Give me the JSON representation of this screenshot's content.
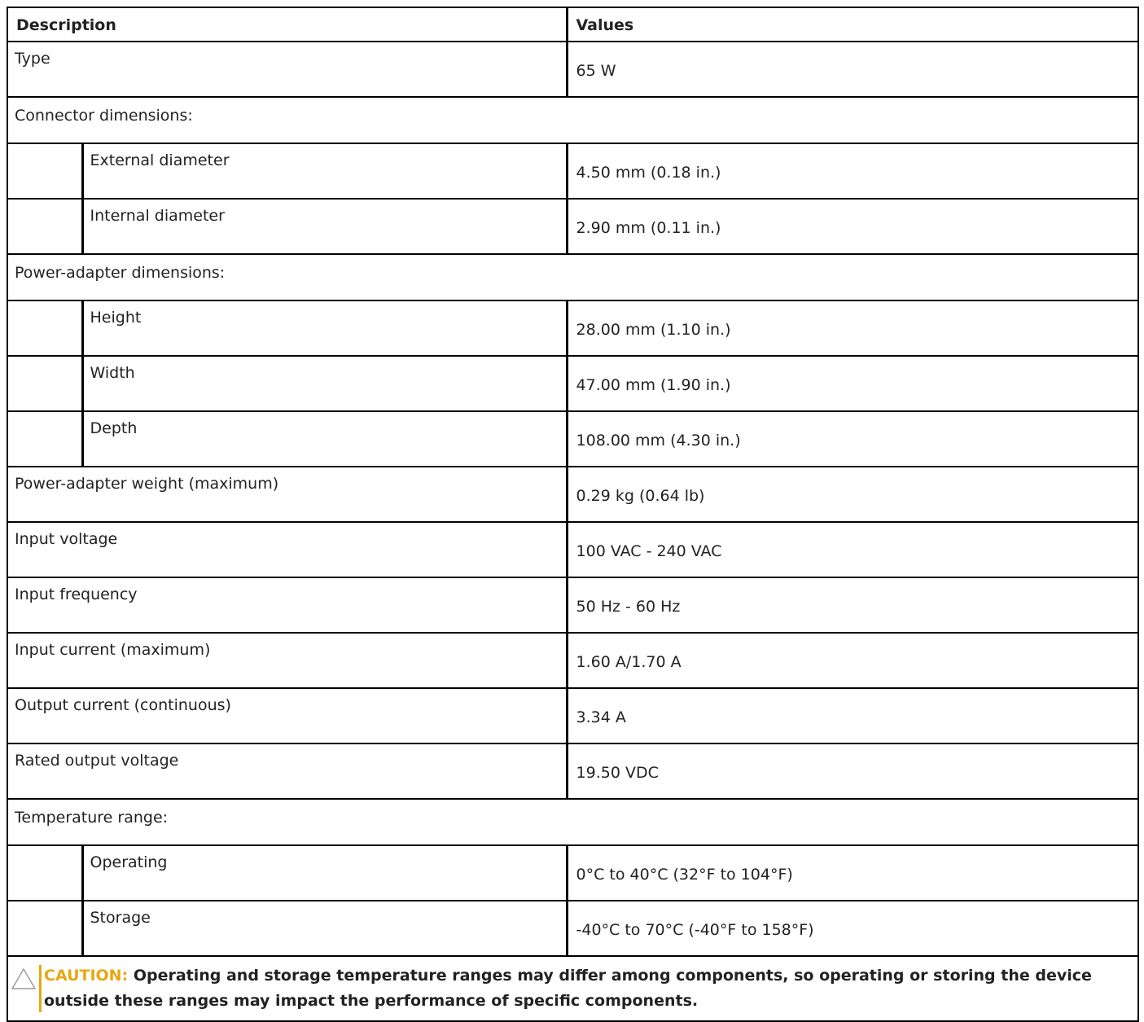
{
  "headers": {
    "description": "Description",
    "values": "Values"
  },
  "rows": {
    "type": {
      "label": "Type",
      "value": "65 W"
    },
    "connector_section": "Connector dimensions:",
    "external_diameter": {
      "label": "External diameter",
      "value": "4.50 mm (0.18 in.)"
    },
    "internal_diameter": {
      "label": "Internal diameter",
      "value": "2.90 mm (0.11 in.)"
    },
    "adapter_section": "Power-adapter dimensions:",
    "height": {
      "label": "Height",
      "value": "28.00 mm (1.10 in.)"
    },
    "width": {
      "label": "Width",
      "value": "47.00 mm (1.90 in.)"
    },
    "depth": {
      "label": "Depth",
      "value": "108.00 mm (4.30 in.)"
    },
    "weight": {
      "label": "Power-adapter weight (maximum)",
      "value": "0.29 kg (0.64 lb)"
    },
    "input_voltage": {
      "label": "Input voltage",
      "value": "100 VAC - 240 VAC"
    },
    "input_frequency": {
      "label": "Input frequency",
      "value": "50 Hz - 60 Hz"
    },
    "input_current": {
      "label": "Input current (maximum)",
      "value": "1.60 A/1.70 A"
    },
    "output_current": {
      "label": "Output current (continuous)",
      "value": "3.34 A"
    },
    "output_voltage": {
      "label": "Rated output voltage",
      "value": "19.50 VDC"
    },
    "temperature_section": "Temperature range:",
    "operating": {
      "label": "Operating",
      "value": "0°C to 40°C (32°F to 104°F)"
    },
    "storage": {
      "label": "Storage",
      "value": "-40°C to 70°C (-40°F to 158°F)"
    }
  },
  "caution": {
    "label": "CAUTION:",
    "text": "Operating and storage temperature ranges may differ among components, so operating or storing the device outside these ranges may impact the performance of specific components.",
    "icon": "warning-triangle-icon",
    "accent_color": "#e5a812"
  }
}
